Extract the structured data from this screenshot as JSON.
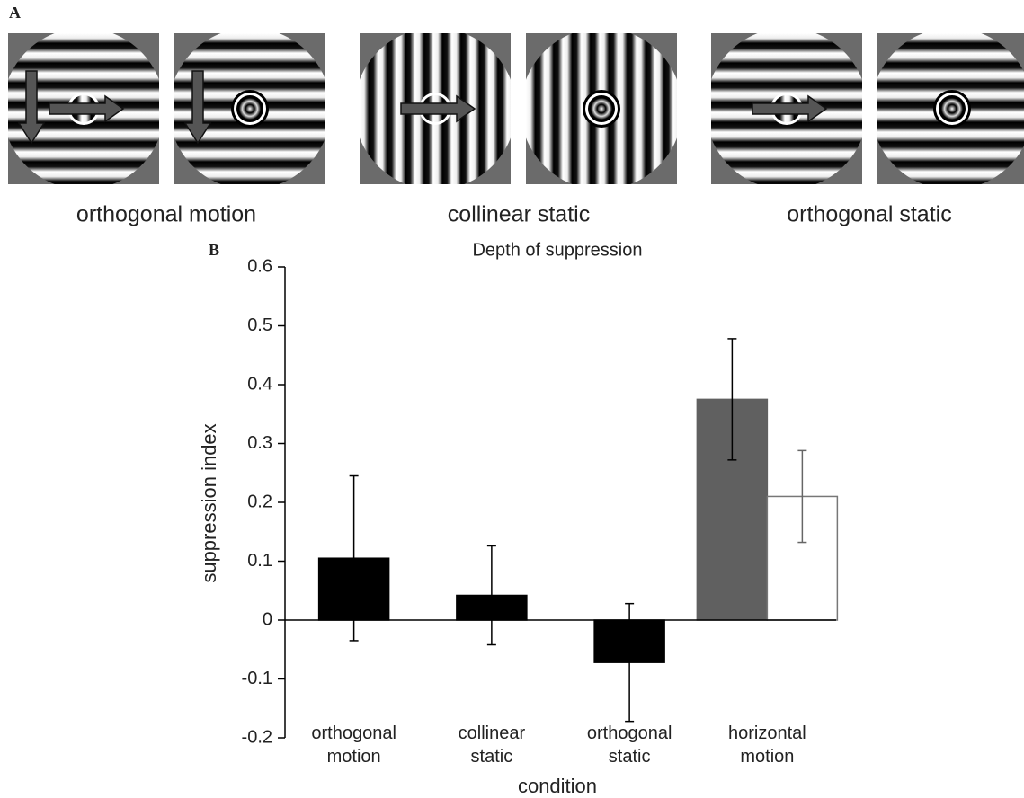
{
  "panel_a": {
    "label": "A",
    "captions": [
      "orthogonal motion",
      "collinear static",
      "orthogonal static"
    ]
  },
  "panel_b": {
    "label": "B"
  },
  "chart_data": {
    "type": "bar",
    "title": "Depth of suppression",
    "x_label": "condition",
    "y_label": "suppression index",
    "categories": [
      "orthogonal motion",
      "collinear static",
      "orthogonal static",
      "horizontal motion"
    ],
    "series": [
      {
        "colors": [
          "#000000",
          "#000000",
          "#000000",
          "#606060"
        ],
        "values": [
          0.105,
          0.042,
          -0.072,
          0.375
        ],
        "errors": [
          0.14,
          0.084,
          0.1,
          0.103
        ]
      },
      {
        "color": "#ffffff",
        "values": [
          null,
          null,
          null,
          0.21
        ],
        "errors": [
          null,
          null,
          null,
          0.078
        ]
      }
    ],
    "ylim": [
      -0.2,
      0.6
    ],
    "yticks": [
      -0.2,
      -0.1,
      0,
      0.1,
      0.2,
      0.3,
      0.4,
      0.5,
      0.6
    ]
  }
}
